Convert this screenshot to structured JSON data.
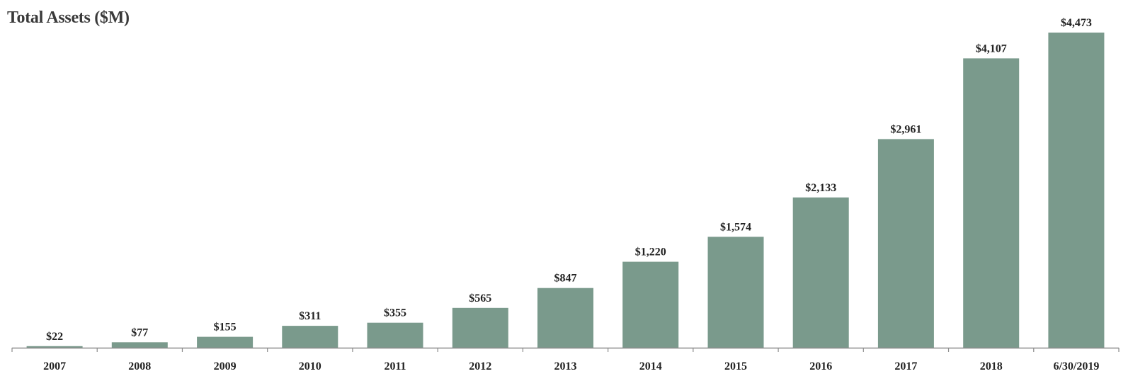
{
  "chart_data": {
    "type": "bar",
    "title": "Total Assets ($M)",
    "categories": [
      "2007",
      "2008",
      "2009",
      "2010",
      "2011",
      "2012",
      "2013",
      "2014",
      "2015",
      "2016",
      "2017",
      "2018",
      "6/30/2019"
    ],
    "values": [
      22,
      77,
      155,
      311,
      355,
      565,
      847,
      1220,
      1574,
      2133,
      2961,
      4107,
      4473
    ],
    "value_labels": [
      "$22",
      "$77",
      "$155",
      "$311",
      "$355",
      "$565",
      "$847",
      "$1,220",
      "$1,574",
      "$2,133",
      "$2,961",
      "$4,107",
      "$4,473"
    ],
    "xlabel": "",
    "ylabel": "",
    "ylim": [
      0,
      4473
    ],
    "grid": false,
    "legend": "none",
    "bar_color": "#7a9a8c",
    "axis_color": "#8c8c8c"
  }
}
